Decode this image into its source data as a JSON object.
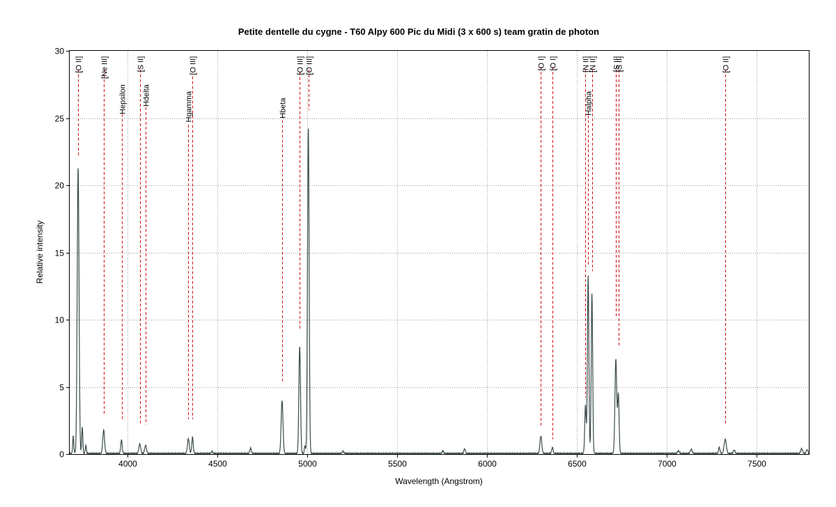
{
  "chart_data": {
    "type": "line",
    "title": "Petite dentelle du cygne - T60 Alpy 600 Pic du Midi (3 x 600 s) team gratin de photon",
    "xlabel": "Wavelength (Angstrom)",
    "ylabel": "Relative intensity",
    "xlim": [
      3680,
      7790
    ],
    "ylim": [
      0,
      30
    ],
    "xticks": [
      4000,
      4500,
      5000,
      5500,
      6000,
      6500,
      7000,
      7500
    ],
    "yticks": [
      0,
      5,
      10,
      15,
      20,
      25,
      30
    ],
    "grid": true,
    "line_color": "#3a4a4a",
    "marker_color": "#d01010",
    "baseline": 0.05,
    "peaks": [
      {
        "x": 3700,
        "y": 1.3,
        "w": 3
      },
      {
        "x": 3727,
        "y": 21.3,
        "w": 5
      },
      {
        "x": 3750,
        "y": 2.0,
        "w": 3
      },
      {
        "x": 3770,
        "y": 0.6,
        "w": 3
      },
      {
        "x": 3869,
        "y": 1.75,
        "w": 5
      },
      {
        "x": 3968,
        "y": 1.0,
        "w": 4
      },
      {
        "x": 4070,
        "y": 0.7,
        "w": 5
      },
      {
        "x": 4102,
        "y": 0.6,
        "w": 5
      },
      {
        "x": 4340,
        "y": 1.1,
        "w": 5
      },
      {
        "x": 4363,
        "y": 1.2,
        "w": 4
      },
      {
        "x": 4471,
        "y": 0.15,
        "w": 4
      },
      {
        "x": 4686,
        "y": 0.4,
        "w": 4
      },
      {
        "x": 4861,
        "y": 3.95,
        "w": 5
      },
      {
        "x": 4959,
        "y": 8.0,
        "w": 4.5
      },
      {
        "x": 4988,
        "y": 0.6,
        "w": 3
      },
      {
        "x": 5007,
        "y": 24.3,
        "w": 4.5
      },
      {
        "x": 5200,
        "y": 0.15,
        "w": 5
      },
      {
        "x": 5755,
        "y": 0.2,
        "w": 4
      },
      {
        "x": 5876,
        "y": 0.35,
        "w": 4
      },
      {
        "x": 6300,
        "y": 1.3,
        "w": 5
      },
      {
        "x": 6364,
        "y": 0.45,
        "w": 4
      },
      {
        "x": 6548,
        "y": 3.6,
        "w": 4
      },
      {
        "x": 6563,
        "y": 13.2,
        "w": 4
      },
      {
        "x": 6584,
        "y": 11.9,
        "w": 4
      },
      {
        "x": 6717,
        "y": 7.0,
        "w": 5
      },
      {
        "x": 6731,
        "y": 4.4,
        "w": 4
      },
      {
        "x": 7065,
        "y": 0.2,
        "w": 5
      },
      {
        "x": 7136,
        "y": 0.3,
        "w": 5
      },
      {
        "x": 7292,
        "y": 0.45,
        "w": 4
      },
      {
        "x": 7325,
        "y": 1.05,
        "w": 6
      },
      {
        "x": 7375,
        "y": 0.25,
        "w": 5
      },
      {
        "x": 7750,
        "y": 0.35,
        "w": 5
      },
      {
        "x": 7780,
        "y": 0.3,
        "w": 4
      }
    ],
    "lines": [
      {
        "label": "[O II]",
        "x": 3727,
        "label_y": 29.6,
        "top": 28.6,
        "bottom": 22.2
      },
      {
        "label": "[Ne III]",
        "x": 3869,
        "label_y": 29.6,
        "top": 28.6,
        "bottom": 3.0
      },
      {
        "label": "Hepsilon",
        "x": 3970,
        "label_y": 27.5,
        "top": 25.3,
        "bottom": 2.5
      },
      {
        "label": "[S II]",
        "x": 4070,
        "label_y": 29.6,
        "top": 28.6,
        "bottom": 2.2
      },
      {
        "label": "Hdelta",
        "x": 4102,
        "label_y": 27.5,
        "top": 25.8,
        "bottom": 2.2
      },
      {
        "label": "Hgamma",
        "x": 4340,
        "label_y": 27.0,
        "top": 24.5,
        "bottom": 2.6
      },
      {
        "label": "[O III]",
        "x": 4363,
        "label_y": 29.6,
        "top": 28.1,
        "bottom": 2.6
      },
      {
        "label": "Hbeta",
        "x": 4861,
        "label_y": 26.5,
        "top": 25.2,
        "bottom": 5.3
      },
      {
        "label": "[O III]",
        "x": 4959,
        "label_y": 29.6,
        "top": 28.4,
        "bottom": 9.3
      },
      {
        "label": "[O III]",
        "x": 5007,
        "label_y": 29.6,
        "top": 28.6,
        "bottom": 25.6
      },
      {
        "label": "[O I]",
        "x": 6300,
        "label_y": 29.6,
        "top": 28.8,
        "bottom": 2.1
      },
      {
        "label": "[O I]",
        "x": 6364,
        "label_y": 29.6,
        "top": 28.8,
        "bottom": 1.1
      },
      {
        "label": "[N II]",
        "x": 6548,
        "label_y": 29.6,
        "top": 28.6,
        "bottom": 4.2
      },
      {
        "label": "Halpha",
        "x": 6563,
        "label_y": 27.0,
        "top": 25.2,
        "bottom": 14.0
      },
      {
        "label": "[N II]",
        "x": 6584,
        "label_y": 29.6,
        "top": 28.6,
        "bottom": 13.6
      },
      {
        "label": "[S II]",
        "x": 6717,
        "label_y": 29.6,
        "top": 28.6,
        "bottom": 10.2
      },
      {
        "label": "[S II]",
        "x": 6731,
        "label_y": 29.6,
        "top": 28.6,
        "bottom": 8.0
      },
      {
        "label": "[O II]",
        "x": 7325,
        "label_y": 29.6,
        "top": 28.6,
        "bottom": 2.2
      }
    ]
  }
}
